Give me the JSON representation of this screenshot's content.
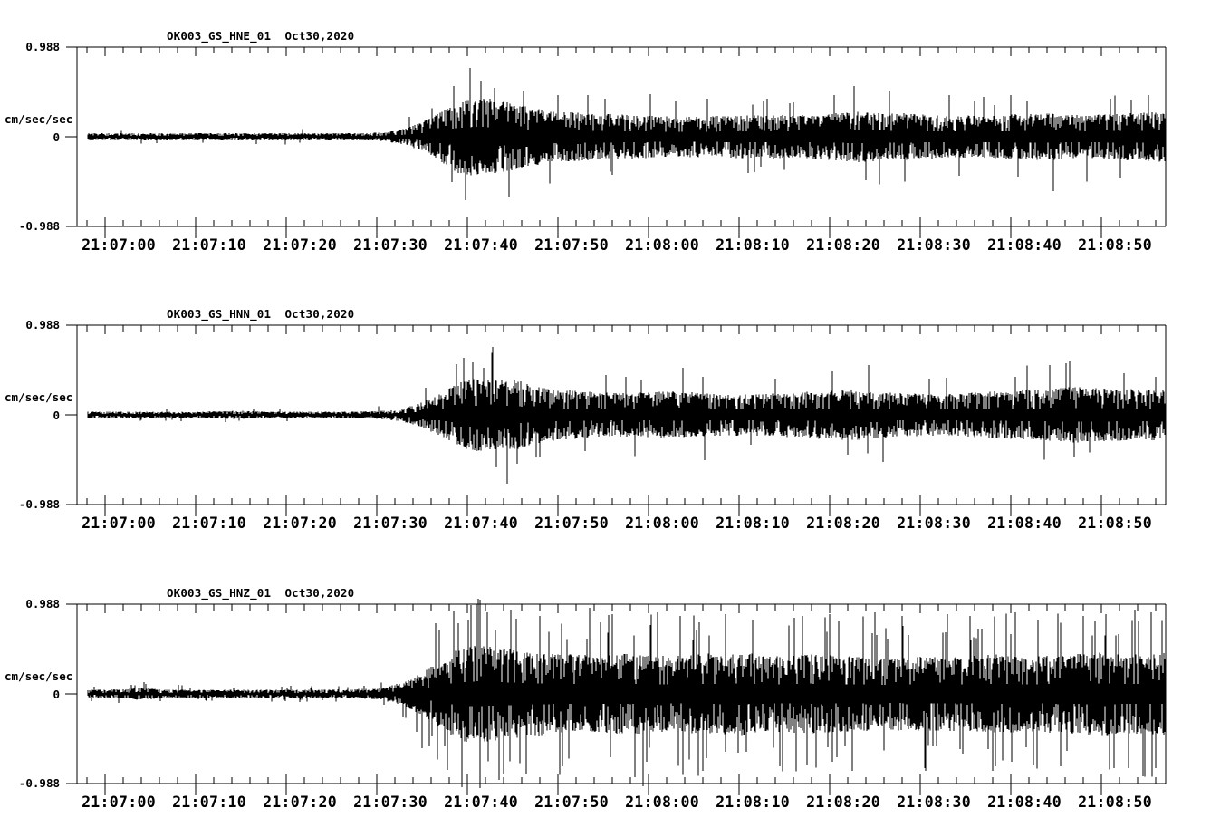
{
  "page": {
    "background": "#ffffff",
    "colors": {
      "trace": "#000000",
      "frame": "#000000",
      "text": "#000000"
    }
  },
  "chart_data": [
    {
      "type": "line",
      "subtype": "seismogram",
      "title": "OK003_GS_HNE_01  Oct30,2020",
      "station_channel": "OK003_GS_HNE_01",
      "date": "Oct30,2020",
      "ylabel": "cm/sec/sec",
      "yticks": [
        "0.988",
        "0",
        "-0.988"
      ],
      "ylim": [
        -0.988,
        0.988
      ],
      "xticklabels": [
        "21:07:00",
        "21:07:10",
        "21:07:20",
        "21:07:30",
        "21:07:40",
        "21:07:50",
        "21:08:00",
        "21:08:10",
        "21:08:20",
        "21:08:30",
        "21:08:40",
        "21:08:50"
      ],
      "x_major_tick_seconds": 10,
      "x_minor_tick_seconds": 2,
      "grid": false,
      "legend": false,
      "envelope": {
        "t_sec_from_21_07_00": [
          -2,
          10,
          20,
          28,
          31,
          33,
          35,
          37,
          39,
          41,
          43,
          45,
          47,
          50,
          54,
          58,
          63,
          68,
          73,
          78,
          83,
          88,
          93,
          98,
          103,
          108,
          113,
          117
        ],
        "amp_cm_s2": [
          0.04,
          0.04,
          0.04,
          0.042,
          0.05,
          0.09,
          0.16,
          0.27,
          0.4,
          0.44,
          0.41,
          0.37,
          0.32,
          0.28,
          0.26,
          0.24,
          0.22,
          0.23,
          0.24,
          0.24,
          0.28,
          0.26,
          0.23,
          0.24,
          0.26,
          0.24,
          0.26,
          0.28
        ]
      },
      "spikes": [
        [
          38.5,
          0.56
        ],
        [
          39.8,
          -0.7
        ],
        [
          40.3,
          0.76
        ],
        [
          41.5,
          0.62
        ],
        [
          43.0,
          0.54
        ],
        [
          44.6,
          -0.66
        ],
        [
          46.2,
          0.5
        ],
        [
          50.0,
          0.46
        ],
        [
          56.0,
          -0.42
        ],
        [
          63.0,
          0.4
        ],
        [
          66.5,
          0.42
        ],
        [
          71.0,
          -0.4
        ],
        [
          76.0,
          0.38
        ],
        [
          80.5,
          0.46
        ],
        [
          82.7,
          0.56
        ],
        [
          84.0,
          -0.48
        ],
        [
          86.6,
          0.5
        ],
        [
          96.0,
          0.4
        ],
        [
          100.0,
          0.46
        ],
        [
          104.7,
          -0.6
        ],
        [
          111.0,
          0.42
        ],
        [
          115.2,
          0.46
        ]
      ]
    },
    {
      "type": "line",
      "subtype": "seismogram",
      "title": "OK003_GS_HNN_01  Oct30,2020",
      "station_channel": "OK003_GS_HNN_01",
      "date": "Oct30,2020",
      "ylabel": "cm/sec/sec",
      "yticks": [
        "0.988",
        "0",
        "-0.988"
      ],
      "ylim": [
        -0.988,
        0.988
      ],
      "xticklabels": [
        "21:07:00",
        "21:07:10",
        "21:07:20",
        "21:07:30",
        "21:07:40",
        "21:07:50",
        "21:08:00",
        "21:08:10",
        "21:08:20",
        "21:08:30",
        "21:08:40",
        "21:08:50"
      ],
      "x_major_tick_seconds": 10,
      "x_minor_tick_seconds": 2,
      "grid": false,
      "legend": false,
      "envelope": {
        "t_sec_from_21_07_00": [
          -2,
          10,
          14,
          20,
          28,
          31,
          33,
          35,
          37,
          39,
          41,
          43,
          45,
          47,
          50,
          54,
          58,
          63,
          68,
          73,
          78,
          83,
          88,
          93,
          98,
          103,
          107,
          111,
          115,
          117
        ],
        "amp_cm_s2": [
          0.035,
          0.034,
          0.045,
          0.035,
          0.038,
          0.05,
          0.08,
          0.14,
          0.24,
          0.36,
          0.4,
          0.38,
          0.4,
          0.33,
          0.28,
          0.25,
          0.24,
          0.26,
          0.23,
          0.23,
          0.26,
          0.28,
          0.24,
          0.23,
          0.26,
          0.28,
          0.31,
          0.29,
          0.28,
          0.3
        ]
      },
      "spikes": [
        [
          38.8,
          0.56
        ],
        [
          39.6,
          0.63
        ],
        [
          40.6,
          0.58
        ],
        [
          41.8,
          0.52
        ],
        [
          43.2,
          -0.58
        ],
        [
          44.4,
          -0.76
        ],
        [
          45.5,
          -0.54
        ],
        [
          48.0,
          -0.46
        ],
        [
          53.0,
          -0.4
        ],
        [
          57.5,
          0.42
        ],
        [
          63.8,
          0.52
        ],
        [
          66.0,
          0.42
        ],
        [
          74.0,
          0.4
        ],
        [
          80.3,
          0.48
        ],
        [
          82.0,
          -0.44
        ],
        [
          84.3,
          0.55
        ],
        [
          91.0,
          0.4
        ],
        [
          100.5,
          0.42
        ],
        [
          104.3,
          0.55
        ],
        [
          107.0,
          -0.46
        ],
        [
          112.5,
          0.46
        ],
        [
          116.0,
          0.42
        ]
      ]
    },
    {
      "type": "line",
      "subtype": "seismogram",
      "title": "OK003_GS_HNZ_01  Oct30,2020",
      "station_channel": "OK003_GS_HNZ_01",
      "date": "Oct30,2020",
      "ylabel": "cm/sec/sec",
      "yticks": [
        "0.988",
        "0",
        "-0.988"
      ],
      "ylim": [
        -0.988,
        0.988
      ],
      "xticklabels": [
        "21:07:00",
        "21:07:10",
        "21:07:20",
        "21:07:30",
        "21:07:40",
        "21:07:50",
        "21:08:00",
        "21:08:10",
        "21:08:20",
        "21:08:30",
        "21:08:40",
        "21:08:50"
      ],
      "x_major_tick_seconds": 10,
      "x_minor_tick_seconds": 2,
      "grid": false,
      "legend": false,
      "envelope": {
        "t_sec_from_21_07_00": [
          -2,
          2,
          4,
          6,
          10,
          20,
          27,
          30,
          32,
          34,
          36,
          38,
          40,
          43,
          46,
          50,
          54,
          58,
          62,
          66,
          70,
          74,
          78,
          82,
          86,
          90,
          94,
          98,
          102,
          106,
          110,
          114,
          117
        ],
        "amp_cm_s2": [
          0.045,
          0.05,
          0.07,
          0.05,
          0.045,
          0.045,
          0.05,
          0.06,
          0.1,
          0.18,
          0.3,
          0.44,
          0.54,
          0.52,
          0.48,
          0.44,
          0.43,
          0.45,
          0.42,
          0.44,
          0.46,
          0.42,
          0.44,
          0.42,
          0.4,
          0.42,
          0.41,
          0.44,
          0.42,
          0.44,
          0.46,
          0.44,
          0.45
        ]
      },
      "spikes": [
        [
          35.0,
          -0.6
        ],
        [
          36.5,
          0.78
        ],
        [
          38.5,
          0.92
        ],
        [
          39.4,
          -1.03
        ],
        [
          40.4,
          0.98
        ],
        [
          41.4,
          -1.04
        ],
        [
          42.2,
          0.9
        ],
        [
          43.5,
          -0.95
        ],
        [
          44.8,
          0.93
        ],
        [
          46.5,
          -0.88
        ],
        [
          48.0,
          0.86
        ],
        [
          50.5,
          -0.8
        ],
        [
          53.5,
          0.95
        ],
        [
          56.0,
          0.88
        ],
        [
          58.5,
          -0.92
        ],
        [
          59.4,
          -1.02
        ],
        [
          61.0,
          0.9
        ],
        [
          63.5,
          0.86
        ],
        [
          66.0,
          -0.85
        ],
        [
          68.5,
          0.88
        ],
        [
          71.5,
          0.82
        ],
        [
          74.5,
          -0.8
        ],
        [
          77.0,
          0.86
        ],
        [
          80.0,
          0.88
        ],
        [
          82.5,
          -0.85
        ],
        [
          85.0,
          0.9
        ],
        [
          88.0,
          0.86
        ],
        [
          90.5,
          -0.82
        ],
        [
          93.0,
          0.88
        ],
        [
          95.5,
          0.86
        ],
        [
          98.0,
          -0.85
        ],
        [
          100.5,
          0.9
        ],
        [
          103.0,
          0.82
        ],
        [
          105.5,
          -0.8
        ],
        [
          108.0,
          0.86
        ],
        [
          110.5,
          0.88
        ],
        [
          113.0,
          -0.82
        ],
        [
          115.5,
          0.9
        ]
      ]
    }
  ]
}
